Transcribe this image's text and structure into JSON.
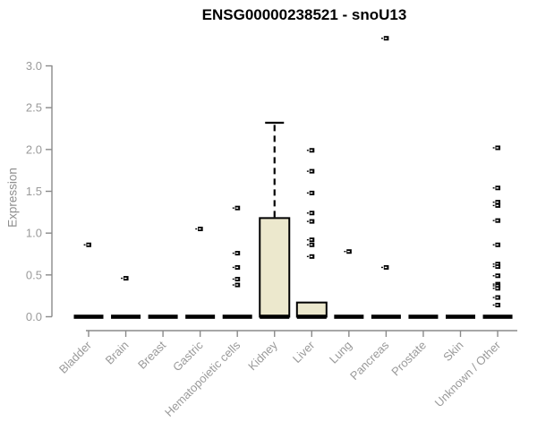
{
  "chart_data": {
    "type": "boxplot",
    "title": "ENSG00000238521 - snoU13",
    "ylabel": "Expression",
    "xlabel": "",
    "ylim": [
      0,
      3.0
    ],
    "grid": false,
    "legend": false,
    "ytick_labels": [
      "0.0",
      "0.5",
      "1.0",
      "1.5",
      "2.0",
      "2.5",
      "3.0"
    ],
    "categories": [
      "Bladder",
      "Brain",
      "Breast",
      "Gastric",
      "Hematopoietic cells",
      "Kidney",
      "Liver",
      "Lung",
      "Pancreas",
      "Prostate",
      "Skin",
      "Unknown / Other"
    ],
    "boxes": [
      {
        "category": "Bladder",
        "median": 0,
        "q1": 0,
        "q3": 0,
        "whisker_high": 0,
        "outliers": [
          0.86
        ]
      },
      {
        "category": "Brain",
        "median": 0,
        "q1": 0,
        "q3": 0,
        "whisker_high": 0,
        "outliers": [
          0.46
        ]
      },
      {
        "category": "Breast",
        "median": 0,
        "q1": 0,
        "q3": 0,
        "whisker_high": 0,
        "outliers": []
      },
      {
        "category": "Gastric",
        "median": 0,
        "q1": 0,
        "q3": 0,
        "whisker_high": 0,
        "outliers": [
          1.05
        ]
      },
      {
        "category": "Hematopoietic cells",
        "median": 0,
        "q1": 0,
        "q3": 0,
        "whisker_high": 0,
        "outliers": [
          1.3,
          0.76,
          0.59,
          0.45,
          0.38
        ]
      },
      {
        "category": "Kidney",
        "median": 0,
        "q1": 0,
        "q3": 1.18,
        "whisker_high": 2.32,
        "outliers": []
      },
      {
        "category": "Liver",
        "median": 0,
        "q1": 0,
        "q3": 0.17,
        "whisker_high": 0.17,
        "outliers": [
          1.99,
          1.74,
          1.48,
          1.24,
          1.14,
          0.92,
          0.86,
          0.72
        ]
      },
      {
        "category": "Lung",
        "median": 0,
        "q1": 0,
        "q3": 0,
        "whisker_high": 0,
        "outliers": [
          0.78
        ]
      },
      {
        "category": "Pancreas",
        "median": 0,
        "q1": 0,
        "q3": 0,
        "whisker_high": 0,
        "outliers": [
          3.33,
          0.59
        ]
      },
      {
        "category": "Prostate",
        "median": 0,
        "q1": 0,
        "q3": 0,
        "whisker_high": 0,
        "outliers": []
      },
      {
        "category": "Skin",
        "median": 0,
        "q1": 0,
        "q3": 0,
        "whisker_high": 0,
        "outliers": []
      },
      {
        "category": "Unknown / Other",
        "median": 0,
        "q1": 0,
        "q3": 0,
        "whisker_high": 0,
        "outliers": [
          2.02,
          1.54,
          1.37,
          1.33,
          1.15,
          0.86,
          0.63,
          0.6,
          0.49,
          0.39,
          0.37,
          0.34,
          0.23,
          0.14
        ]
      }
    ],
    "colors": {
      "box_fill": "#ECE8CD",
      "box_stroke": "#000000",
      "median": "#000000",
      "outlier": "#000000",
      "axis": "#8a8a8a",
      "tick_label": "#9a9a9a",
      "title": "#000000"
    }
  }
}
